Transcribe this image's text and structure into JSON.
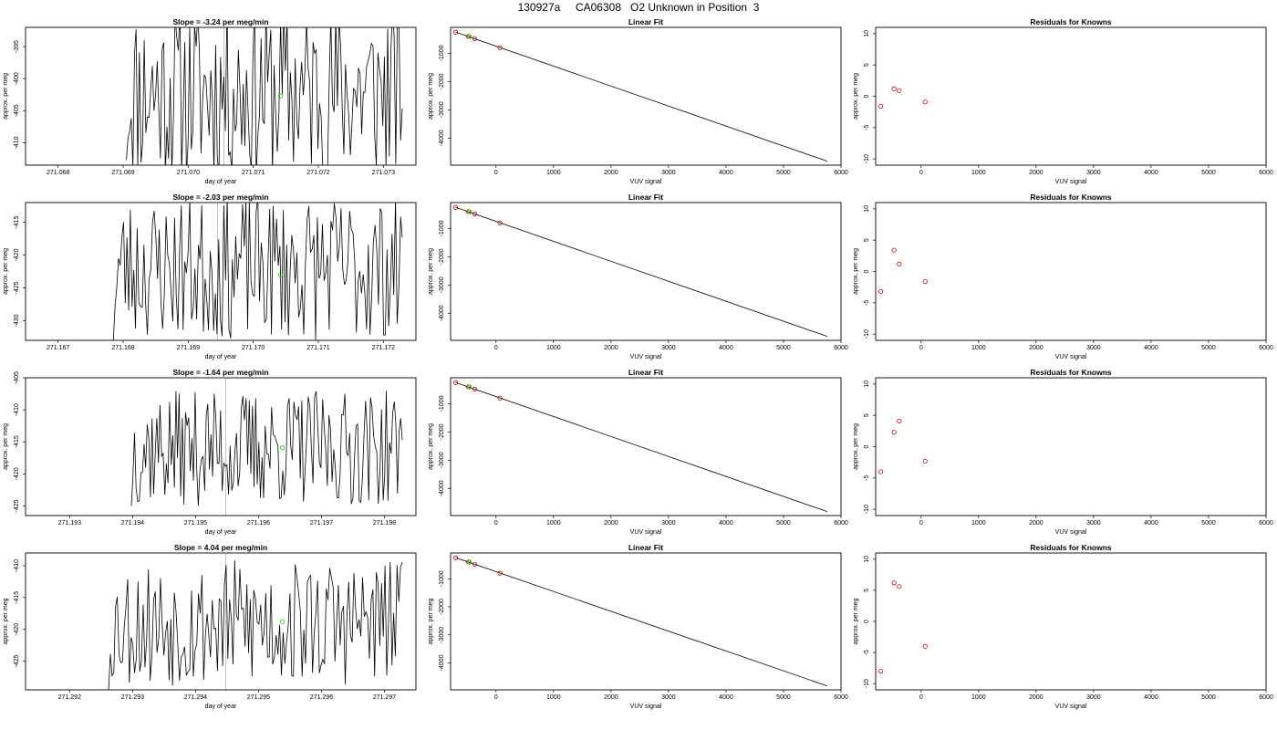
{
  "page_title": "130927a     CA06308   O2 Unknown in Position  3",
  "colors": {
    "line": "#000000",
    "known": "#cc0000",
    "unknown": "#00cc00",
    "marker_line": "#999999"
  },
  "chart_data": [
    {
      "type": "line",
      "row": 0,
      "col": 0,
      "title": "Slope =  -3.24  per meg/min",
      "xlabel": "day of year",
      "ylabel": "approx. per meg",
      "xlim": [
        271.0675,
        271.0735
      ],
      "ylim": [
        -413.5,
        -392
      ],
      "xticks": [
        271.068,
        271.069,
        271.07,
        271.071,
        271.072,
        271.073
      ],
      "xticklabels": [
        "271.068",
        "271.069",
        "271.070",
        "271.071",
        "271.072",
        "271.073"
      ],
      "yticks": [
        -395,
        -400,
        -405,
        -410
      ],
      "yticklabels": [
        "-395",
        "-400",
        "-405",
        "-410"
      ],
      "marker_x": 271.07055,
      "unknown_point": {
        "x": 271.07142,
        "y": -402.7
      },
      "seed": 11,
      "start_x": 271.06905,
      "start_y": -412.7,
      "amp": 14,
      "center": -402
    },
    {
      "type": "scatter-line",
      "row": 0,
      "col": 1,
      "title": "Linear Fit",
      "xlabel": "VUV signal",
      "ylabel": "approx. per meg",
      "xlim": [
        -790,
        6000
      ],
      "ylim": [
        -4960,
        -80
      ],
      "xticks": [
        0,
        1000,
        2000,
        3000,
        4000,
        5000,
        6000
      ],
      "xticklabels": [
        "0",
        "1000",
        "2000",
        "3000",
        "4000",
        "5000",
        "6000"
      ],
      "yticks": [
        -1000,
        -2000,
        -3000,
        -4000
      ],
      "yticklabels": [
        "-1000",
        "-2000",
        "-3000",
        "-4000"
      ],
      "fit_line": [
        [
          -700,
          -250
        ],
        [
          5760,
          -4820
        ]
      ],
      "knowns": [
        [
          -700,
          -250
        ],
        [
          -480,
          -400
        ],
        [
          -370,
          -480
        ],
        [
          70,
          -800
        ]
      ],
      "unknown": [
        [
          -460,
          -405
        ]
      ]
    },
    {
      "type": "scatter",
      "row": 0,
      "col": 2,
      "title": "Residuals for Knowns",
      "xlabel": "VUV signal",
      "ylabel": "approx. per meg",
      "xlim": [
        -790,
        6000
      ],
      "ylim": [
        -11,
        11
      ],
      "xticks": [
        0,
        1000,
        2000,
        3000,
        4000,
        5000,
        6000
      ],
      "xticklabels": [
        "0",
        "1000",
        "2000",
        "3000",
        "4000",
        "5000",
        "6000"
      ],
      "yticks": [
        10,
        5,
        0,
        -5,
        -10
      ],
      "yticklabels": [
        "10",
        "5",
        "0",
        "-5",
        "-10"
      ],
      "points": [
        [
          -700,
          -1.6
        ],
        [
          -470,
          1.2
        ],
        [
          -380,
          0.9
        ],
        [
          70,
          -0.9
        ]
      ]
    },
    {
      "type": "line",
      "row": 1,
      "col": 0,
      "title": "Slope =  -2.03  per meg/min",
      "xlabel": "day of year",
      "ylabel": "approx. per meg",
      "xlim": [
        271.1665,
        271.1725
      ],
      "ylim": [
        -433,
        -412
      ],
      "xticks": [
        271.167,
        271.168,
        271.169,
        271.17,
        271.171,
        271.172
      ],
      "xticklabels": [
        "271.167",
        "271.168",
        "271.169",
        "271.170",
        "271.171",
        "271.172"
      ],
      "yticks": [
        -415,
        -420,
        -425,
        -430
      ],
      "yticklabels": [
        "-415",
        "-420",
        "-425",
        "-430"
      ],
      "marker_x": 271.16945,
      "unknown_point": {
        "x": 271.17042,
        "y": -423.0
      },
      "seed": 23,
      "start_x": 271.16785,
      "start_y": -433,
      "amp": 11,
      "center": -422
    },
    {
      "type": "scatter-line",
      "row": 1,
      "col": 1,
      "title": "Linear Fit",
      "xlabel": "VUV signal",
      "ylabel": "approx. per meg",
      "xlim": [
        -790,
        6000
      ],
      "ylim": [
        -4960,
        -80
      ],
      "xticks": [
        0,
        1000,
        2000,
        3000,
        4000,
        5000,
        6000
      ],
      "xticklabels": [
        "0",
        "1000",
        "2000",
        "3000",
        "4000",
        "5000",
        "6000"
      ],
      "yticks": [
        -1000,
        -2000,
        -3000,
        -4000
      ],
      "yticklabels": [
        "-1000",
        "-2000",
        "-3000",
        "-4000"
      ],
      "fit_line": [
        [
          -700,
          -250
        ],
        [
          5760,
          -4820
        ]
      ],
      "knowns": [
        [
          -700,
          -250
        ],
        [
          -480,
          -400
        ],
        [
          -370,
          -480
        ],
        [
          70,
          -800
        ]
      ],
      "unknown": [
        [
          -460,
          -405
        ]
      ]
    },
    {
      "type": "scatter",
      "row": 1,
      "col": 2,
      "title": "Residuals for Knowns",
      "xlabel": "VUV signal",
      "ylabel": "approx. per meg",
      "xlim": [
        -790,
        6000
      ],
      "ylim": [
        -11,
        11
      ],
      "xticks": [
        0,
        1000,
        2000,
        3000,
        4000,
        5000,
        6000
      ],
      "xticklabels": [
        "0",
        "1000",
        "2000",
        "3000",
        "4000",
        "5000",
        "6000"
      ],
      "yticks": [
        10,
        5,
        0,
        -5,
        -10
      ],
      "yticklabels": [
        "10",
        "5",
        "0",
        "-5",
        "-10"
      ],
      "points": [
        [
          -700,
          -3.2
        ],
        [
          -470,
          3.4
        ],
        [
          -380,
          1.2
        ],
        [
          70,
          -1.6
        ]
      ]
    },
    {
      "type": "line",
      "row": 2,
      "col": 0,
      "title": "Slope =  -1.64  per meg/min",
      "xlabel": "day of year",
      "ylabel": "approx. per meg",
      "xlim": [
        271.1923,
        271.1985
      ],
      "ylim": [
        -426.5,
        -405
      ],
      "xticks": [
        271.193,
        271.194,
        271.195,
        271.196,
        271.197,
        271.198
      ],
      "xticklabels": [
        "271.193",
        "271.194",
        "271.195",
        "271.196",
        "271.197",
        "271.198"
      ],
      "yticks": [
        -405,
        -410,
        -415,
        -420,
        -425
      ],
      "yticklabels": [
        "-405",
        "-410",
        "-415",
        "-420",
        "-425"
      ],
      "marker_x": 271.19548,
      "unknown_point": {
        "x": 271.19638,
        "y": -415.9
      },
      "seed": 37,
      "start_x": 271.19398,
      "start_y": -425.0,
      "amp": 9,
      "center": -416
    },
    {
      "type": "scatter-line",
      "row": 2,
      "col": 1,
      "title": "Linear Fit",
      "xlabel": "VUV signal",
      "ylabel": "approx. per meg",
      "xlim": [
        -790,
        6000
      ],
      "ylim": [
        -4960,
        -80
      ],
      "xticks": [
        0,
        1000,
        2000,
        3000,
        4000,
        5000,
        6000
      ],
      "xticklabels": [
        "0",
        "1000",
        "2000",
        "3000",
        "4000",
        "5000",
        "6000"
      ],
      "yticks": [
        -1000,
        -2000,
        -3000,
        -4000
      ],
      "yticklabels": [
        "-1000",
        "-2000",
        "-3000",
        "-4000"
      ],
      "fit_line": [
        [
          -700,
          -250
        ],
        [
          5760,
          -4820
        ]
      ],
      "knowns": [
        [
          -700,
          -250
        ],
        [
          -480,
          -400
        ],
        [
          -370,
          -480
        ],
        [
          70,
          -800
        ]
      ],
      "unknown": [
        [
          -460,
          -405
        ]
      ]
    },
    {
      "type": "scatter",
      "row": 2,
      "col": 2,
      "title": "Residuals for Knowns",
      "xlabel": "VUV signal",
      "ylabel": "approx. per meg",
      "xlim": [
        -790,
        6000
      ],
      "ylim": [
        -11,
        11
      ],
      "xticks": [
        0,
        1000,
        2000,
        3000,
        4000,
        5000,
        6000
      ],
      "xticklabels": [
        "0",
        "1000",
        "2000",
        "3000",
        "4000",
        "5000",
        "6000"
      ],
      "yticks": [
        10,
        5,
        0,
        -5,
        -10
      ],
      "yticklabels": [
        "10",
        "5",
        "0",
        "-5",
        "-10"
      ],
      "points": [
        [
          -700,
          -4.0
        ],
        [
          -470,
          2.3
        ],
        [
          -380,
          4.1
        ],
        [
          70,
          -2.3
        ]
      ]
    },
    {
      "type": "line",
      "row": 3,
      "col": 0,
      "title": "Slope =  4.04  per meg/min",
      "xlabel": "day of year",
      "ylabel": "approx. per meg",
      "xlim": [
        271.2913,
        271.2975
      ],
      "ylim": [
        -429.5,
        -408
      ],
      "xticks": [
        271.292,
        271.293,
        271.294,
        271.295,
        271.296,
        271.297
      ],
      "xticklabels": [
        "271.292",
        "271.293",
        "271.294",
        "271.295",
        "271.296",
        "271.297"
      ],
      "yticks": [
        -410,
        -415,
        -420,
        -425
      ],
      "yticklabels": [
        "-410",
        "-415",
        "-420",
        "-425"
      ],
      "marker_x": 271.29448,
      "unknown_point": {
        "x": 271.29538,
        "y": -418.8
      },
      "seed": 53,
      "start_x": 271.29262,
      "start_y": -429.5,
      "amp": 10,
      "center": -419
    },
    {
      "type": "scatter-line",
      "row": 3,
      "col": 1,
      "title": "Linear Fit",
      "xlabel": "VUV signal",
      "ylabel": "approx. per meg",
      "xlim": [
        -790,
        6000
      ],
      "ylim": [
        -4960,
        -80
      ],
      "xticks": [
        0,
        1000,
        2000,
        3000,
        4000,
        5000,
        6000
      ],
      "xticklabels": [
        "0",
        "1000",
        "2000",
        "3000",
        "4000",
        "5000",
        "6000"
      ],
      "yticks": [
        -1000,
        -2000,
        -3000,
        -4000
      ],
      "yticklabels": [
        "-1000",
        "-2000",
        "-3000",
        "-4000"
      ],
      "fit_line": [
        [
          -700,
          -250
        ],
        [
          5760,
          -4820
        ]
      ],
      "knowns": [
        [
          -700,
          -250
        ],
        [
          -480,
          -400
        ],
        [
          -370,
          -480
        ],
        [
          70,
          -800
        ]
      ],
      "unknown": [
        [
          -460,
          -405
        ]
      ]
    },
    {
      "type": "scatter",
      "row": 3,
      "col": 2,
      "title": "Residuals for Knowns",
      "xlabel": "VUV signal",
      "ylabel": "approx. per meg",
      "xlim": [
        -790,
        6000
      ],
      "ylim": [
        -11,
        11
      ],
      "xticks": [
        0,
        1000,
        2000,
        3000,
        4000,
        5000,
        6000
      ],
      "xticklabels": [
        "0",
        "1000",
        "2000",
        "3000",
        "4000",
        "5000",
        "6000"
      ],
      "yticks": [
        10,
        5,
        0,
        -5,
        -10
      ],
      "yticklabels": [
        "10",
        "5",
        "0",
        "-5",
        "-10"
      ],
      "points": [
        [
          -700,
          -8.0
        ],
        [
          -470,
          6.2
        ],
        [
          -380,
          5.6
        ],
        [
          70,
          -4.0
        ]
      ]
    }
  ]
}
